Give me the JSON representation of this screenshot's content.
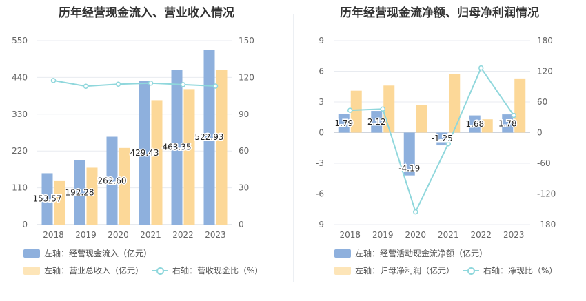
{
  "chart_data": [
    {
      "type": "bar",
      "title": "历年经营现金流入、营业收入情况",
      "categories": [
        "2018",
        "2019",
        "2020",
        "2021",
        "2022",
        "2023"
      ],
      "left_axis": {
        "ticks": [
          "0",
          "110",
          "220",
          "330",
          "440",
          "550"
        ],
        "min": 0,
        "max": 550
      },
      "right_axis": {
        "ticks": [
          "0",
          "30",
          "60",
          "90",
          "120",
          "150"
        ],
        "min": 0,
        "max": 150
      },
      "series": [
        {
          "name": "左轴：经营现金流入（亿元）",
          "kind": "bar",
          "axis": "left",
          "color": "#8eb0dd",
          "values": [
            153.57,
            192.28,
            262.6,
            429.43,
            463.35,
            522.93
          ],
          "labels": [
            "153.57",
            "192.28",
            "262.60",
            "429.43",
            "463.35",
            "522.93"
          ]
        },
        {
          "name": "左轴：营业总收入（亿元）",
          "kind": "bar",
          "axis": "left",
          "color": "#fcd898",
          "values": [
            130,
            170,
            229,
            372,
            405,
            462
          ]
        },
        {
          "name": "右轴：营收现金比（%）",
          "kind": "line",
          "axis": "right",
          "color": "#8fd7dc",
          "values": [
            117.5,
            112.8,
            114.5,
            115.3,
            114.1,
            112.9
          ]
        }
      ]
    },
    {
      "type": "bar",
      "title": "历年经营现金流净额、归母净利润情况",
      "categories": [
        "2018",
        "2019",
        "2020",
        "2021",
        "2022",
        "2023"
      ],
      "left_axis": {
        "ticks": [
          "-9",
          "-6",
          "-3",
          "0",
          "3",
          "6",
          "9"
        ],
        "min": -9,
        "max": 9
      },
      "right_axis": {
        "ticks": [
          "-180",
          "-120",
          "-60",
          "0",
          "60",
          "120",
          "180"
        ],
        "min": -180,
        "max": 180
      },
      "series": [
        {
          "name": "左轴：经营活动现金流净额（亿元）",
          "kind": "bar",
          "axis": "left",
          "color": "#8eb0dd",
          "values": [
            1.79,
            2.12,
            -4.19,
            -1.25,
            1.68,
            1.78
          ],
          "labels": [
            "1.79",
            "2.12",
            "-4.19",
            "-1.25",
            "1.68",
            "1.78"
          ]
        },
        {
          "name": "左轴：归母净利润（亿元）",
          "kind": "bar",
          "axis": "left",
          "color": "#fcd898",
          "values": [
            4.1,
            4.6,
            2.7,
            5.7,
            1.3,
            5.3
          ]
        },
        {
          "name": "右轴：净现比（%）",
          "kind": "line",
          "axis": "right",
          "color": "#8fd7dc",
          "values": [
            43.7,
            46.1,
            -155.2,
            -21.9,
            126.5,
            33.6
          ]
        }
      ]
    }
  ]
}
